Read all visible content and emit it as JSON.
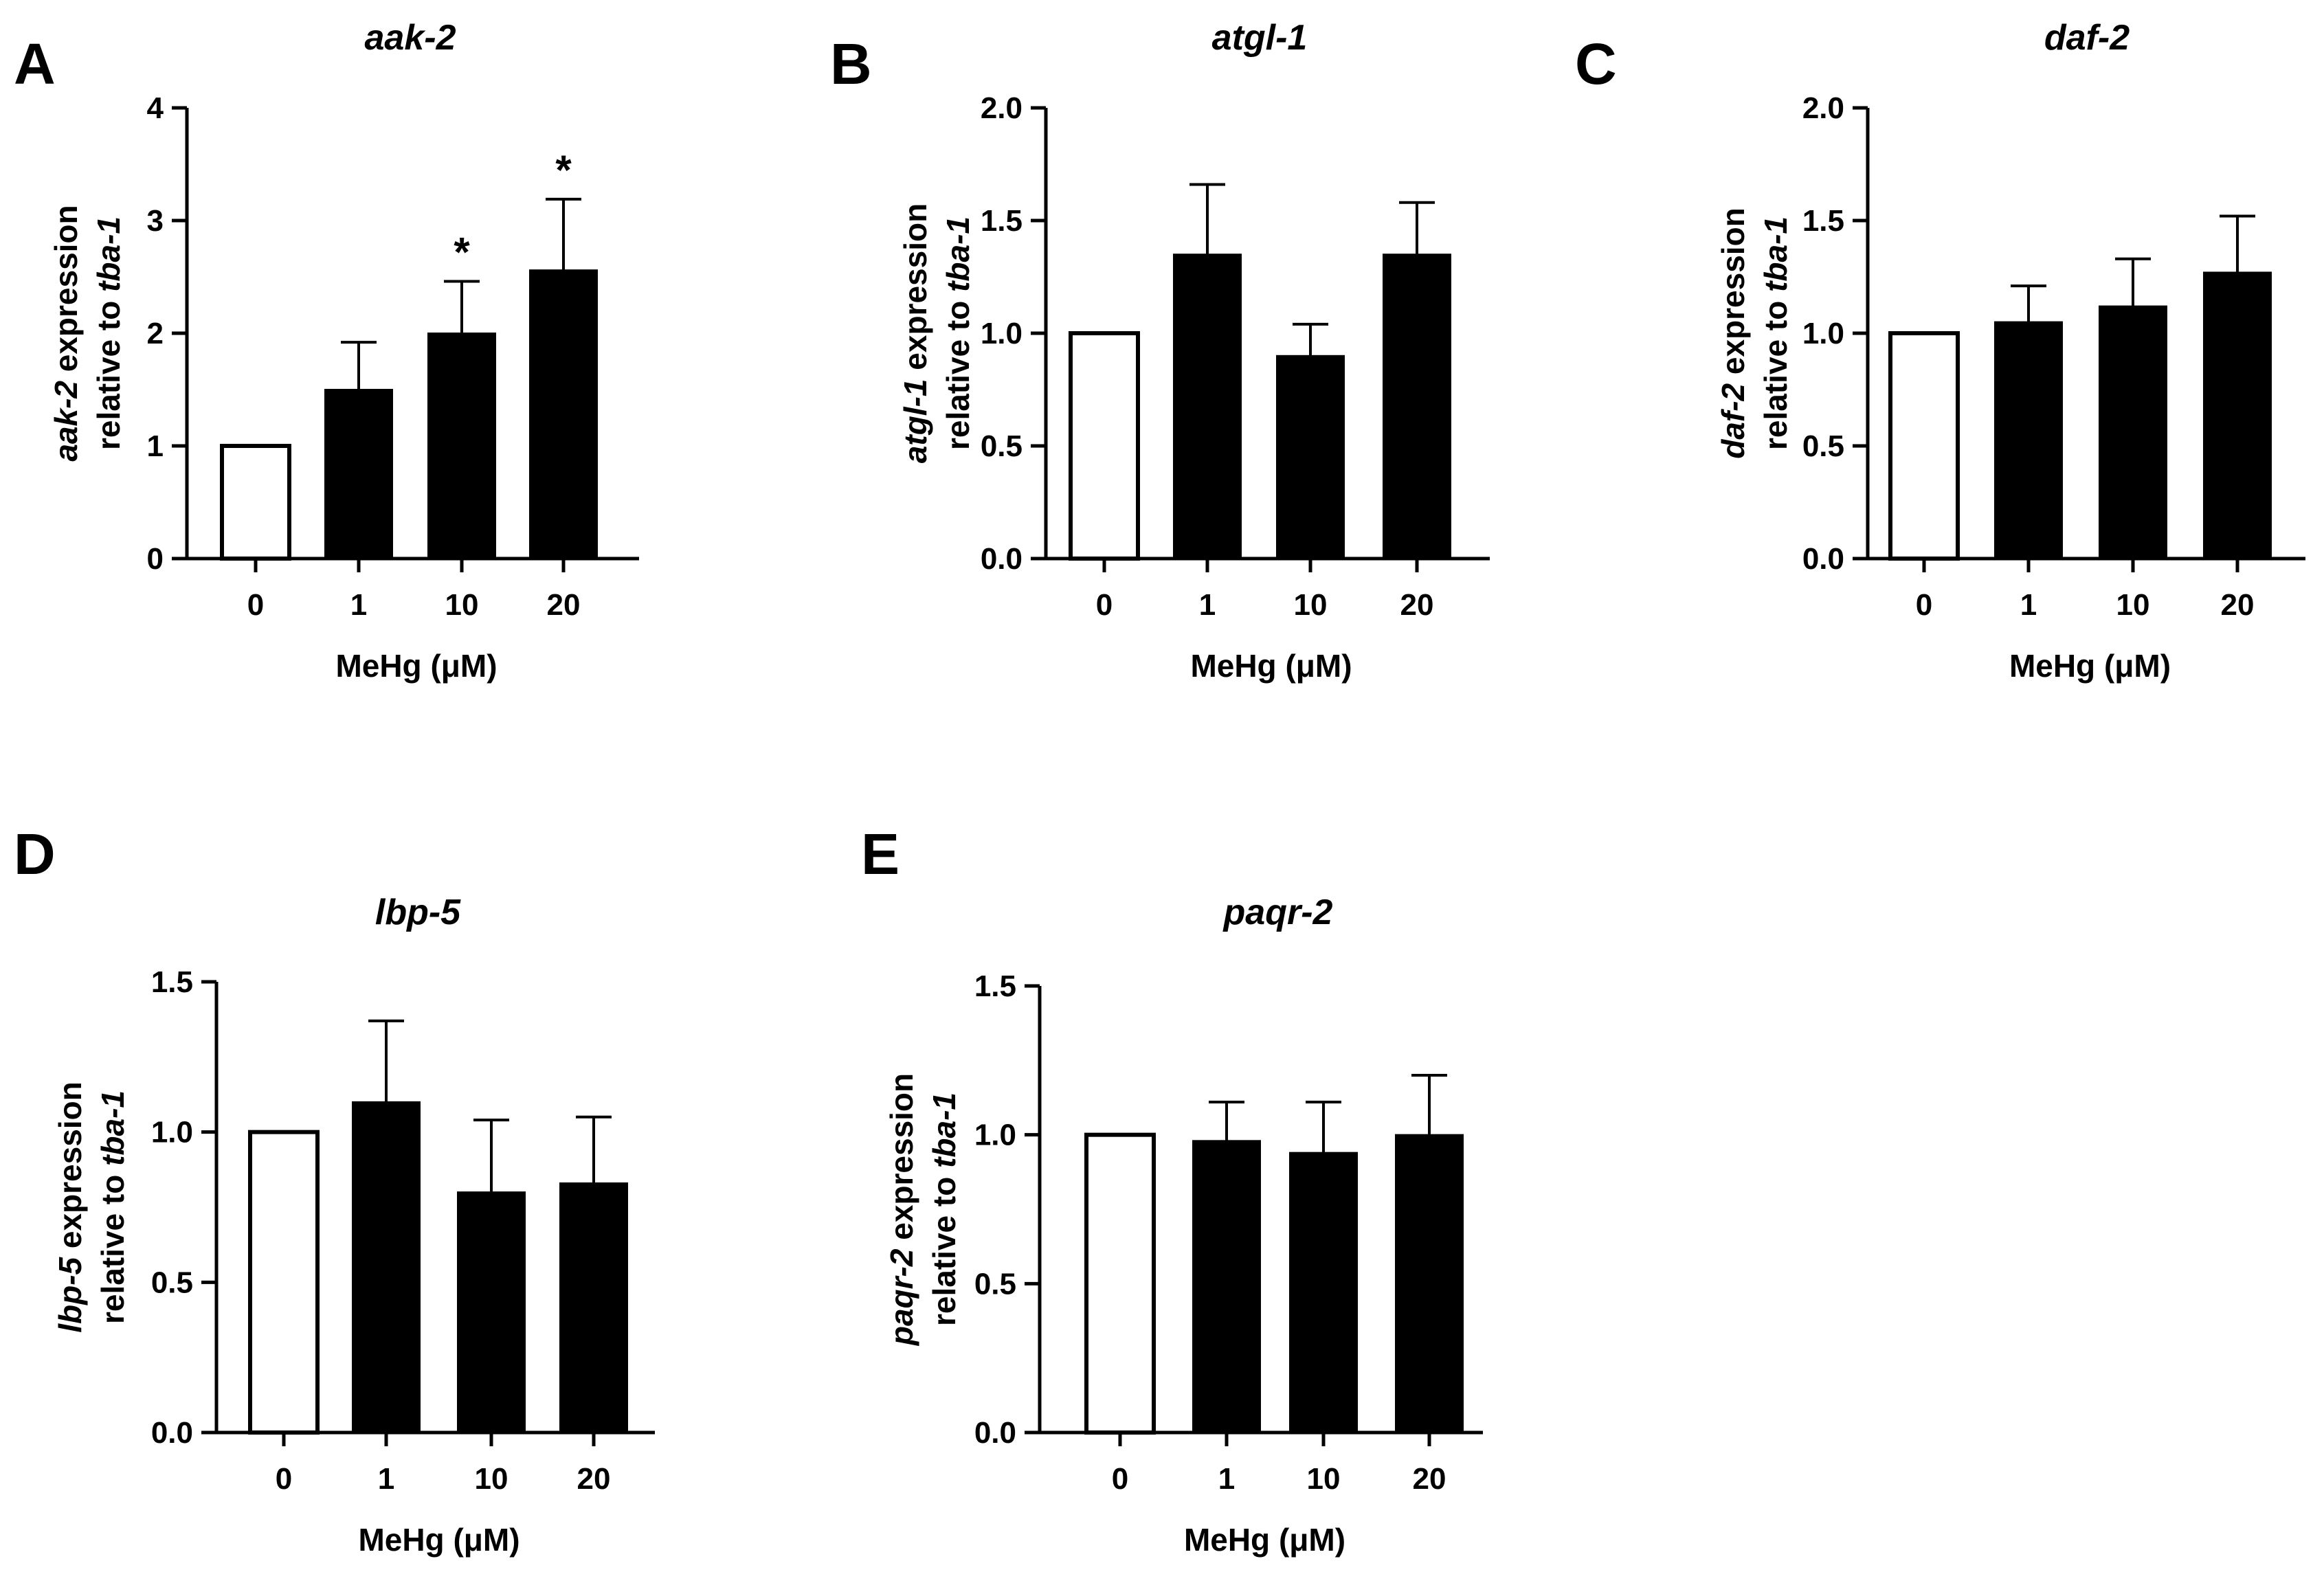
{
  "chart_data": [
    {
      "panel": "A",
      "type": "bar",
      "title": "aak-2",
      "categories": [
        "0",
        "1",
        "10",
        "20"
      ],
      "values": [
        1.0,
        1.5,
        2.0,
        2.56
      ],
      "errors": [
        0.0,
        0.42,
        0.46,
        0.63
      ],
      "significance": [
        "",
        "",
        "*",
        "*"
      ],
      "bar_fill": [
        "#ffffff",
        "#000000",
        "#000000",
        "#000000"
      ],
      "xlabel": "MeHg (μM)",
      "ylabel": {
        "gene": "aak-2",
        "line1_rest": " expression",
        "line2_prefix": "relative to ",
        "reference": "tba-1"
      },
      "ylim": [
        0,
        4
      ],
      "yticks": [
        "0",
        "1",
        "2",
        "3",
        "4"
      ]
    },
    {
      "panel": "B",
      "type": "bar",
      "title": "atgl-1",
      "categories": [
        "0",
        "1",
        "10",
        "20"
      ],
      "values": [
        1.0,
        1.35,
        0.9,
        1.35
      ],
      "errors": [
        0.0,
        0.31,
        0.14,
        0.23
      ],
      "significance": [
        "",
        "",
        "",
        ""
      ],
      "bar_fill": [
        "#ffffff",
        "#000000",
        "#000000",
        "#000000"
      ],
      "xlabel": "MeHg (μM)",
      "ylabel": {
        "gene": "atgl-1",
        "line1_rest": " expression",
        "line2_prefix": "relative to ",
        "reference": "tba-1"
      },
      "ylim": [
        0,
        2
      ],
      "yticks": [
        "0.0",
        "0.5",
        "1.0",
        "1.5",
        "2.0"
      ]
    },
    {
      "panel": "C",
      "type": "bar",
      "title": "daf-2",
      "categories": [
        "0",
        "1",
        "10",
        "20"
      ],
      "values": [
        1.0,
        1.05,
        1.12,
        1.27
      ],
      "errors": [
        0.0,
        0.16,
        0.21,
        0.25
      ],
      "significance": [
        "",
        "",
        "",
        ""
      ],
      "bar_fill": [
        "#ffffff",
        "#000000",
        "#000000",
        "#000000"
      ],
      "xlabel": "MeHg (μM)",
      "ylabel": {
        "gene": "daf-2",
        "line1_rest": " expression",
        "line2_prefix": "relative to ",
        "reference": "tba-1"
      },
      "ylim": [
        0,
        2
      ],
      "yticks": [
        "0.0",
        "0.5",
        "1.0",
        "1.5",
        "2.0"
      ]
    },
    {
      "panel": "D",
      "type": "bar",
      "title": "lbp-5",
      "categories": [
        "0",
        "1",
        "10",
        "20"
      ],
      "values": [
        1.0,
        1.1,
        0.8,
        0.83
      ],
      "errors": [
        0.0,
        0.27,
        0.24,
        0.22
      ],
      "significance": [
        "",
        "",
        "",
        ""
      ],
      "bar_fill": [
        "#ffffff",
        "#000000",
        "#000000",
        "#000000"
      ],
      "xlabel": "MeHg (μM)",
      "ylabel": {
        "gene": "lbp-5",
        "line1_rest": " expression",
        "line2_prefix": "relative to ",
        "reference": "tba-1"
      },
      "ylim": [
        0,
        1.5
      ],
      "yticks": [
        "0.0",
        "0.5",
        "1.0",
        "1.5"
      ]
    },
    {
      "panel": "E",
      "type": "bar",
      "title": "paqr-2",
      "categories": [
        "0",
        "1",
        "10",
        "20"
      ],
      "values": [
        1.0,
        0.98,
        0.94,
        1.0
      ],
      "errors": [
        0.0,
        0.13,
        0.17,
        0.2
      ],
      "significance": [
        "",
        "",
        "",
        ""
      ],
      "bar_fill": [
        "#ffffff",
        "#000000",
        "#000000",
        "#000000"
      ],
      "xlabel": "MeHg (μM)",
      "ylabel": {
        "gene": "paqr-2",
        "line1_rest": " expression",
        "line2_prefix": "relative to ",
        "reference": "tba-1"
      },
      "ylim": [
        0,
        1.5
      ],
      "yticks": [
        "0.0",
        "0.5",
        "1.0",
        "1.5"
      ]
    }
  ]
}
